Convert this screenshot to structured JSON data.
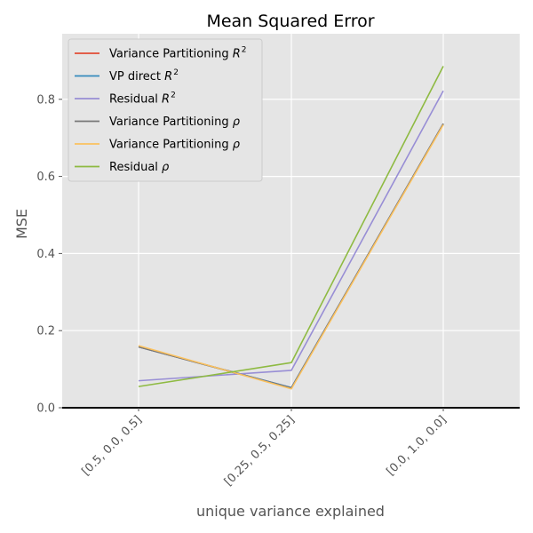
{
  "chart_data": {
    "type": "line",
    "title": "Mean Squared Error",
    "xlabel": "unique variance explained",
    "ylabel": "MSE",
    "categories": [
      "[0.5, 0.0, 0.5]",
      "[0.25, 0.5, 0.25]",
      "[0.0, 1.0, 0.0]"
    ],
    "ylim": [
      0,
      0.97
    ],
    "yticks": [
      "0.0",
      "0.2",
      "0.4",
      "0.6",
      "0.8"
    ],
    "ytick_values": [
      0.0,
      0.2,
      0.4,
      0.6,
      0.8
    ],
    "grid": true,
    "legend_position": "top-left",
    "axis_hline": 0,
    "series": [
      {
        "name": "Variance Partitioning R²",
        "label_main": "Variance Partitioning ",
        "label_var": "R",
        "label_sup": "2",
        "color": "#E24A33",
        "values": [
          0.158,
          0.052,
          0.736
        ]
      },
      {
        "name": "VP direct R²",
        "label_main": "VP direct ",
        "label_var": "R",
        "label_sup": "2",
        "color": "#348ABD",
        "values": [
          0.158,
          0.052,
          0.736
        ]
      },
      {
        "name": "Residual R²",
        "label_main": "Residual ",
        "label_var": "R",
        "label_sup": "2",
        "color": "#988ED5",
        "values": [
          0.07,
          0.097,
          0.822
        ]
      },
      {
        "name": "Variance Partitioning ρ",
        "label_main": "Variance Partitioning ",
        "label_var": "ρ",
        "label_sup": "",
        "color": "#777777",
        "values": [
          0.158,
          0.051,
          0.737
        ]
      },
      {
        "name": "Variance Partitioning ρ",
        "label_main": "Variance Partitioning ",
        "label_var": "ρ",
        "label_sup": "",
        "color": "#FBC15E",
        "values": [
          0.161,
          0.049,
          0.734
        ]
      },
      {
        "name": "Residual ρ",
        "label_main": "Residual ",
        "label_var": "ρ",
        "label_sup": "",
        "color": "#8EBA42",
        "values": [
          0.055,
          0.117,
          0.886
        ]
      }
    ]
  }
}
